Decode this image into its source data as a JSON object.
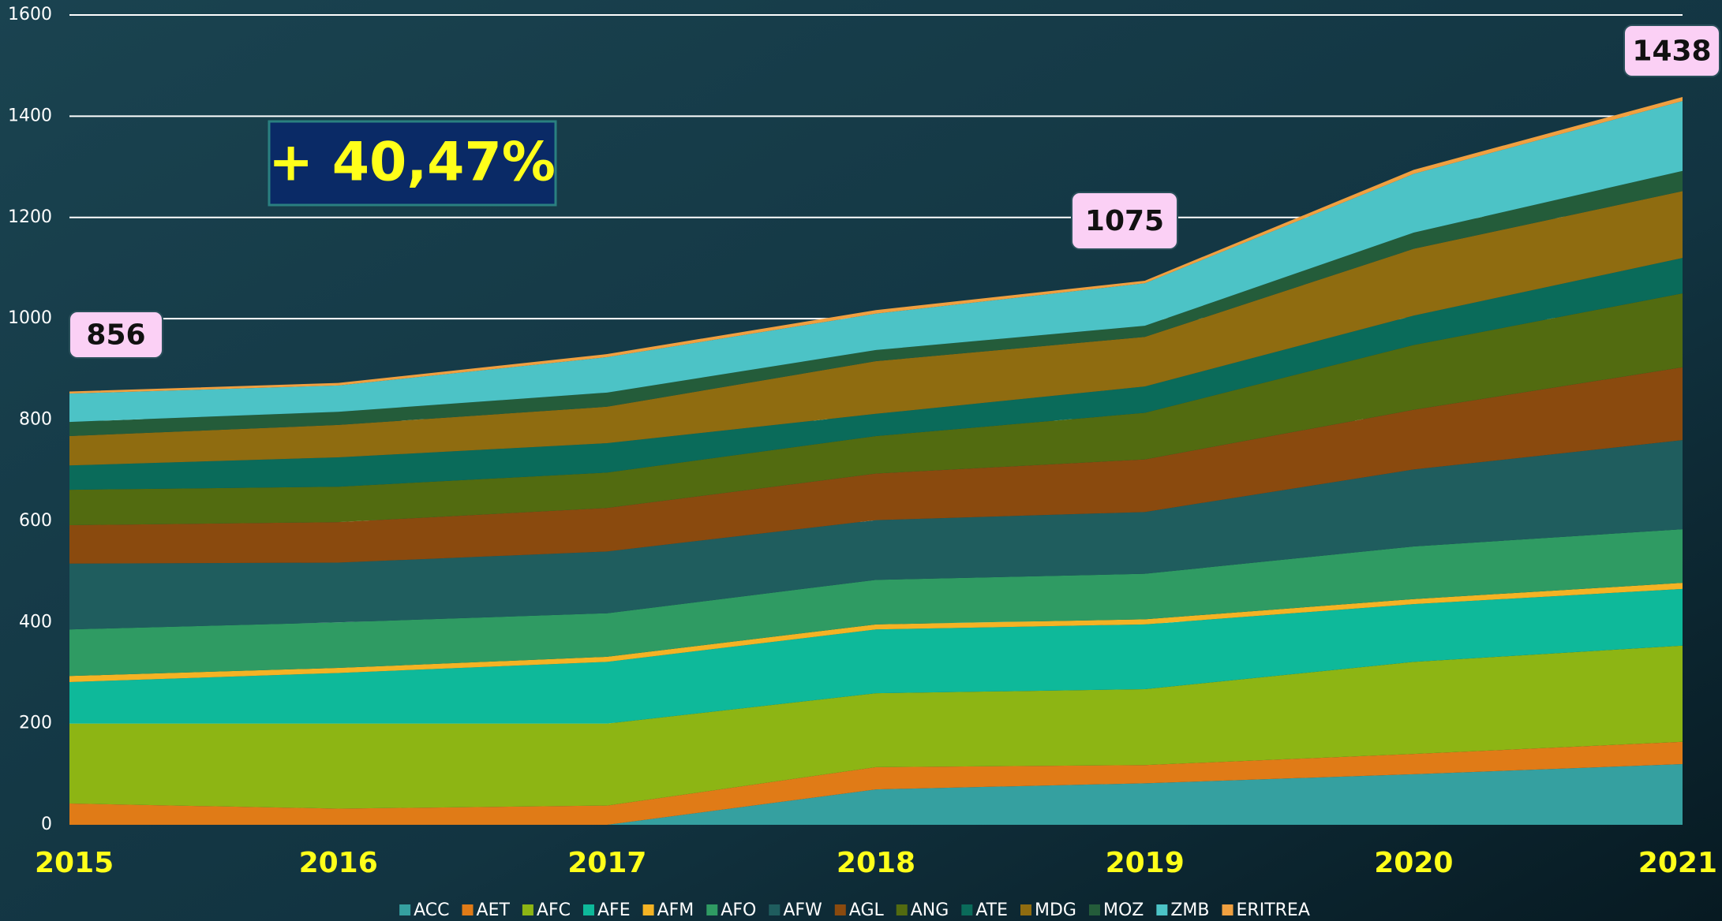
{
  "chart_data": {
    "type": "stacked_area",
    "categories": [
      "2015",
      "2016",
      "2017",
      "2018",
      "2019",
      "2020",
      "2021"
    ],
    "series": [
      {
        "name": "ACC",
        "color": "#35a0a0",
        "values": [
          0,
          0,
          0,
          70,
          82,
          100,
          120
        ]
      },
      {
        "name": "AET",
        "color": "#e07b17",
        "values": [
          42,
          32,
          38,
          44,
          36,
          40,
          44
        ]
      },
      {
        "name": "AFC",
        "color": "#8db514",
        "values": [
          158,
          168,
          162,
          146,
          150,
          182,
          190
        ]
      },
      {
        "name": "AFE",
        "color": "#0eb99a",
        "values": [
          82,
          100,
          122,
          126,
          128,
          114,
          112
        ]
      },
      {
        "name": "AFM",
        "color": "#f4b324",
        "values": [
          12,
          10,
          10,
          10,
          10,
          10,
          12
        ]
      },
      {
        "name": "AFO",
        "color": "#2f9b63",
        "values": [
          92,
          90,
          86,
          88,
          90,
          104,
          106
        ]
      },
      {
        "name": "AFW",
        "color": "#1f5d5e",
        "values": [
          130,
          118,
          122,
          118,
          122,
          152,
          176
        ]
      },
      {
        "name": "AGL",
        "color": "#8a4a0e",
        "values": [
          76,
          80,
          86,
          92,
          104,
          118,
          144
        ]
      },
      {
        "name": "ANG",
        "color": "#526b10",
        "values": [
          70,
          70,
          70,
          74,
          92,
          128,
          146
        ]
      },
      {
        "name": "ATE",
        "color": "#0a6b5a",
        "values": [
          48,
          58,
          58,
          44,
          52,
          58,
          70
        ]
      },
      {
        "name": "MDG",
        "color": "#8f6c10",
        "values": [
          58,
          64,
          72,
          104,
          98,
          132,
          132
        ]
      },
      {
        "name": "MOZ",
        "color": "#245c3a",
        "values": [
          28,
          26,
          28,
          22,
          22,
          32,
          40
        ]
      },
      {
        "name": "ZMB",
        "color": "#4cc3c6",
        "values": [
          56,
          52,
          70,
          72,
          84,
          116,
          138
        ]
      },
      {
        "name": "ERITREA",
        "color": "#f0a040",
        "values": [
          4,
          5,
          6,
          7,
          5,
          8,
          8
        ]
      }
    ],
    "ylim": [
      0,
      1600
    ],
    "yticks": [
      0,
      200,
      400,
      600,
      800,
      1000,
      1200,
      1400,
      1600
    ],
    "grid": true,
    "annotations": [
      "856",
      "1075",
      "1438",
      "+ 40,47%"
    ]
  }
}
